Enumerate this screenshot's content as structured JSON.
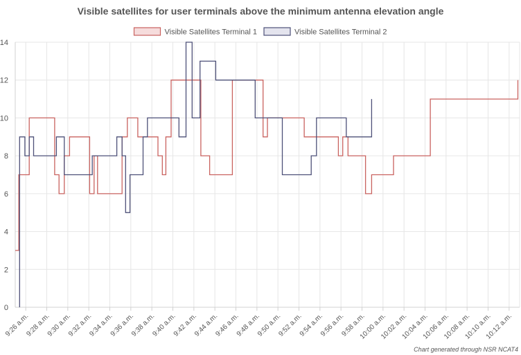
{
  "chart_data": {
    "type": "line",
    "step": true,
    "title": "Visible satellites for user terminals above the minimum antenna elevation angle",
    "footnote": "Chart generated through NSR NCAT4",
    "legend_position": "top-center",
    "grid": true,
    "ylim": [
      0,
      14
    ],
    "yticks": [
      0,
      2,
      4,
      6,
      8,
      10,
      12,
      14
    ],
    "xlim": [
      "9:25 a.m.",
      "10:13 a.m."
    ],
    "xtick_labels": [
      "9:26 a.m.",
      "9:28 a.m.",
      "9:30 a.m.",
      "9:32 a.m.",
      "9:34 a.m.",
      "9:36 a.m.",
      "9:38 a.m.",
      "9:40 a.m.",
      "9:42 a.m.",
      "9:44 a.m.",
      "9:46 a.m.",
      "9:48 a.m.",
      "9:50 a.m.",
      "9:52 a.m.",
      "9:54 a.m.",
      "9:56 a.m.",
      "9:58 a.m.",
      "10:00 a.m.",
      "10:02 a.m.",
      "10:04 a.m.",
      "10:06 a.m.",
      "10:08 a.m.",
      "10:10 a.m.",
      "10:12 a.m."
    ],
    "series": [
      {
        "name": "Visible Satellites Terminal 1",
        "color": "#c9625f",
        "fill": "#f6dcdc",
        "points": [
          [
            "9:25:00",
            3
          ],
          [
            "9:25:20",
            7
          ],
          [
            "9:26:20",
            10
          ],
          [
            "9:28:45",
            7
          ],
          [
            "9:29:10",
            6
          ],
          [
            "9:29:40",
            8
          ],
          [
            "9:30:10",
            9
          ],
          [
            "9:32:05",
            6
          ],
          [
            "9:32:30",
            8
          ],
          [
            "9:32:50",
            6
          ],
          [
            "9:35:10",
            9
          ],
          [
            "9:35:40",
            10
          ],
          [
            "9:36:40",
            9
          ],
          [
            "9:38:35",
            8
          ],
          [
            "9:39:00",
            7
          ],
          [
            "9:39:20",
            9
          ],
          [
            "9:39:50",
            12
          ],
          [
            "9:42:40",
            8
          ],
          [
            "9:43:30",
            7
          ],
          [
            "9:45:40",
            12
          ],
          [
            "9:48:35",
            9
          ],
          [
            "9:49:00",
            10
          ],
          [
            "9:52:30",
            9
          ],
          [
            "9:55:45",
            8
          ],
          [
            "9:56:10",
            9
          ],
          [
            "9:56:40",
            8
          ],
          [
            "9:58:20",
            6
          ],
          [
            "9:58:55",
            7
          ],
          [
            "10:01:00",
            8
          ],
          [
            "10:04:30",
            11
          ],
          [
            "10:12:50",
            12
          ]
        ]
      },
      {
        "name": "Visible Satellites Terminal 2",
        "color": "#4d5078",
        "fill": "#e4e4ee",
        "points": [
          [
            "9:25:25",
            0
          ],
          [
            "9:25:25",
            9
          ],
          [
            "9:25:55",
            8
          ],
          [
            "9:26:20",
            9
          ],
          [
            "9:26:45",
            8
          ],
          [
            "9:28:55",
            9
          ],
          [
            "9:29:40",
            7
          ],
          [
            "9:32:20",
            8
          ],
          [
            "9:34:40",
            9
          ],
          [
            "9:35:10",
            8
          ],
          [
            "9:35:30",
            5
          ],
          [
            "9:35:55",
            7
          ],
          [
            "9:37:10",
            9
          ],
          [
            "9:37:35",
            10
          ],
          [
            "9:40:35",
            9
          ],
          [
            "9:41:15",
            14
          ],
          [
            "9:41:50",
            10
          ],
          [
            "9:42:35",
            13
          ],
          [
            "9:44:05",
            12
          ],
          [
            "9:47:50",
            10
          ],
          [
            "9:50:25",
            7
          ],
          [
            "9:53:10",
            8
          ],
          [
            "9:53:40",
            10
          ],
          [
            "9:56:30",
            9
          ],
          [
            "9:58:55",
            11
          ]
        ]
      }
    ]
  }
}
